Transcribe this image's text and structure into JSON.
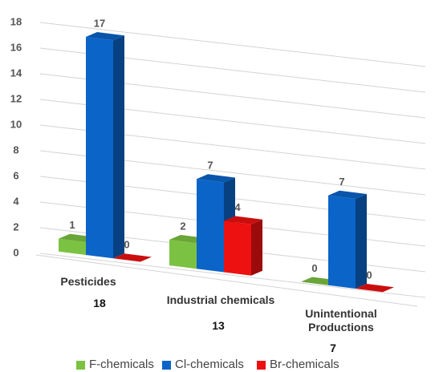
{
  "chart_data": {
    "type": "bar3d",
    "categories": [
      "Pesticides",
      "Industrial chemicals",
      "Unintentional Productions"
    ],
    "totals": [
      18,
      13,
      7
    ],
    "series": [
      {
        "name": "F-chemicals",
        "color": "#7cc242",
        "values": [
          1,
          2,
          0
        ]
      },
      {
        "name": "Cl-chemicals",
        "color": "#0b64c8",
        "values": [
          17,
          7,
          7
        ]
      },
      {
        "name": "Br-chemicals",
        "color": "#ee1111",
        "values": [
          0,
          4,
          0
        ]
      }
    ],
    "ylim": [
      0,
      18
    ],
    "yticks": [
      0,
      2,
      4,
      6,
      8,
      10,
      12,
      14,
      16,
      18
    ],
    "grid": true
  }
}
